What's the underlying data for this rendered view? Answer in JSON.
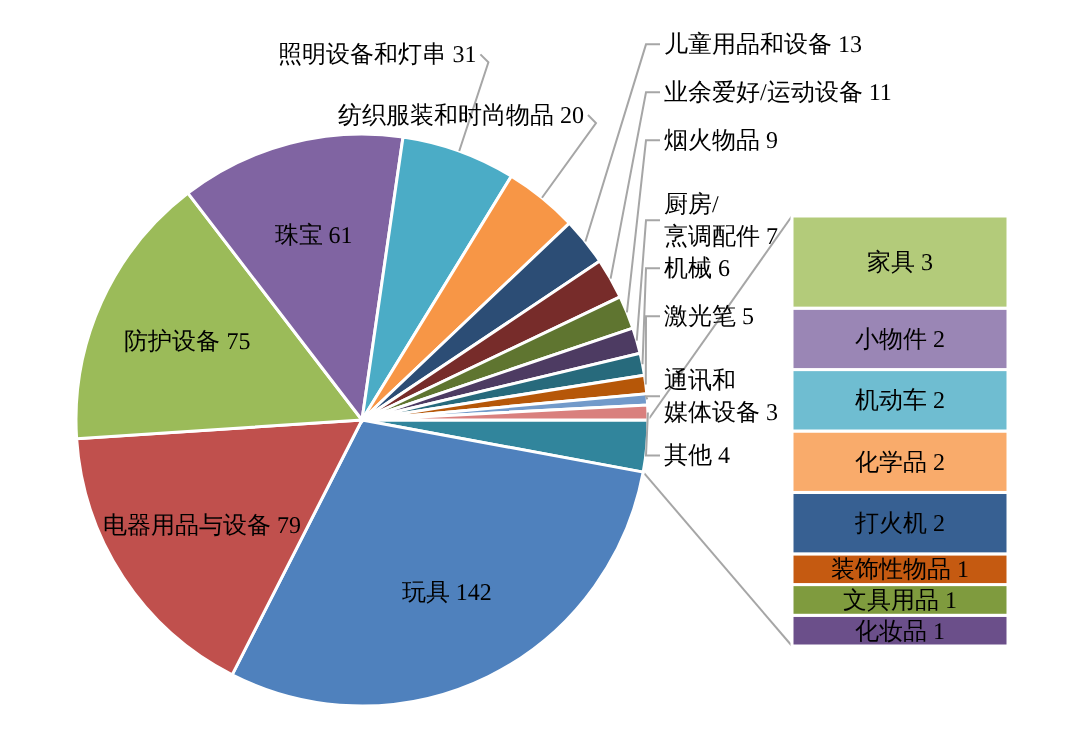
{
  "chart_data": [
    {
      "type": "pie",
      "categories": [
        null,
        "玩具",
        "电器用品与设备",
        "防护设备",
        "珠宝",
        "照明设备和灯串",
        "纺织服装和时尚物品",
        "儿童用品和设备",
        "业余爱好/运动设备",
        "烟火物品",
        "厨房/烹调配件",
        "机械",
        "激光笔",
        "通讯和媒体设备",
        "其他"
      ],
      "values": [
        14,
        142,
        79,
        75,
        61,
        31,
        20,
        13,
        11,
        9,
        7,
        6,
        5,
        3,
        4
      ],
      "value_labels": [
        null,
        "142",
        "79",
        "75",
        "61",
        "31",
        "20",
        "13",
        "11",
        "9",
        "7",
        "6",
        "5",
        "3",
        "4"
      ],
      "colors": [
        "#31859c",
        "#4f81bd",
        "#c0504d",
        "#9bbb59",
        "#8064a2",
        "#4bacc6",
        "#f79646",
        "#2c4d75",
        "#772c2a",
        "#5f7530",
        "#4d3b62",
        "#276a7c",
        "#b65708",
        "#729aca",
        "#d9807e"
      ]
    },
    {
      "type": "bar",
      "stacked": true,
      "categories": [
        null
      ],
      "data_labels": true,
      "series": [
        {
          "name": "化妆品",
          "color": "#6b4f8a",
          "values": [
            1
          ]
        },
        {
          "name": "文具用品",
          "color": "#7f9b3e",
          "values": [
            1
          ]
        },
        {
          "name": "装饰性物品",
          "color": "#c55a11",
          "values": [
            1
          ]
        },
        {
          "name": "打火机",
          "color": "#376092",
          "values": [
            2
          ]
        },
        {
          "name": "化学品",
          "color": "#f9ab6b",
          "values": [
            2
          ]
        },
        {
          "name": "机动车",
          "color": "#6fbdd1",
          "values": [
            2
          ]
        },
        {
          "name": "小物件",
          "color": "#9a86b5",
          "values": [
            2
          ]
        },
        {
          "name": "家具",
          "color": "#b3cb7a",
          "values": [
            3
          ]
        }
      ]
    }
  ]
}
